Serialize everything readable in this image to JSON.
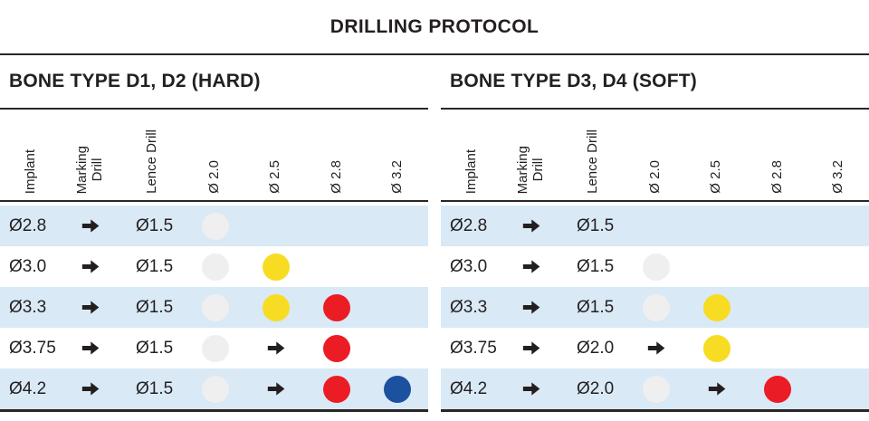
{
  "title": "DRILLING PROTOCOL",
  "colors": {
    "line_dark": "#2a2627",
    "text_dark": "#231f20",
    "row_blue": "#d9e9f6",
    "dot_gray": "#efeff0",
    "dot_yellow": "#f8dc23",
    "dot_red": "#ec1c24",
    "dot_blue": "#1c51a0"
  },
  "columns": [
    "Implant",
    "Marking\nDrill",
    "Lence Drill",
    "Ø 2.0",
    "Ø 2.5",
    "Ø 2.8",
    "Ø 3.2"
  ],
  "legend_note": "arrow-icon means proceed / step indicator; dots mark drill diameters used",
  "tables": [
    {
      "heading": "BONE TYPE D1, D2 (HARD)",
      "rows": [
        {
          "implant": "Ø2.8",
          "marking": "arrow",
          "lence": "Ø1.5",
          "cells": [
            "gray",
            "",
            "",
            ""
          ]
        },
        {
          "implant": "Ø3.0",
          "marking": "arrow",
          "lence": "Ø1.5",
          "cells": [
            "gray",
            "yellow",
            "",
            ""
          ]
        },
        {
          "implant": "Ø3.3",
          "marking": "arrow",
          "lence": "Ø1.5",
          "cells": [
            "gray",
            "yellow",
            "red",
            ""
          ]
        },
        {
          "implant": "Ø3.75",
          "marking": "arrow",
          "lence": "Ø1.5",
          "cells": [
            "gray",
            "arrow",
            "red",
            ""
          ]
        },
        {
          "implant": "Ø4.2",
          "marking": "arrow",
          "lence": "Ø1.5",
          "cells": [
            "gray",
            "arrow",
            "red",
            "blue"
          ]
        }
      ]
    },
    {
      "heading": "BONE TYPE D3, D4 (SOFT)",
      "rows": [
        {
          "implant": "Ø2.8",
          "marking": "arrow",
          "lence": "Ø1.5",
          "cells": [
            "",
            "",
            "",
            ""
          ]
        },
        {
          "implant": "Ø3.0",
          "marking": "arrow",
          "lence": "Ø1.5",
          "cells": [
            "gray",
            "",
            "",
            ""
          ]
        },
        {
          "implant": "Ø3.3",
          "marking": "arrow",
          "lence": "Ø1.5",
          "cells": [
            "gray",
            "yellow",
            "",
            ""
          ]
        },
        {
          "implant": "Ø3.75",
          "marking": "arrow",
          "lence": "Ø2.0",
          "cells": [
            "arrow",
            "yellow",
            "",
            ""
          ]
        },
        {
          "implant": "Ø4.2",
          "marking": "arrow",
          "lence": "Ø2.0",
          "cells": [
            "gray",
            "arrow",
            "red",
            ""
          ]
        }
      ]
    }
  ]
}
